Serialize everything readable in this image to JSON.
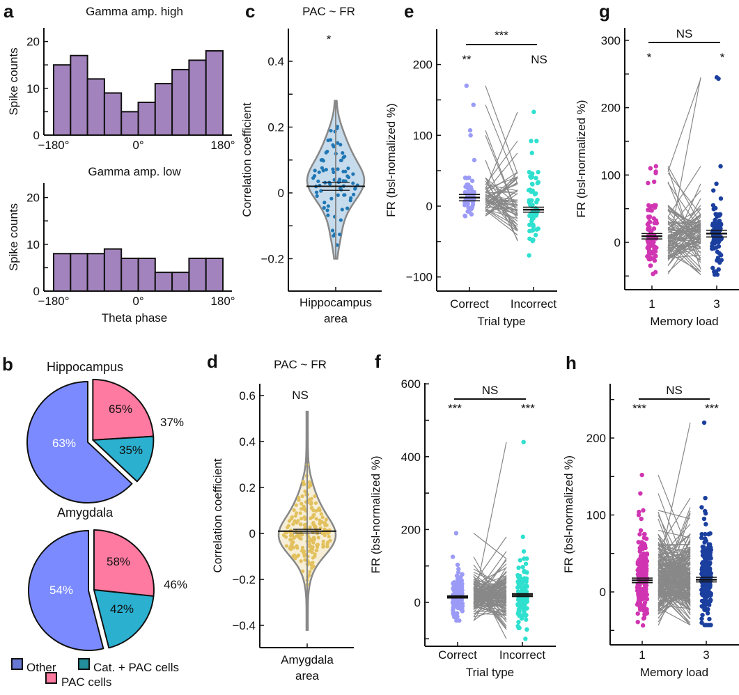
{
  "panel_labels": [
    "a",
    "b",
    "c",
    "d",
    "e",
    "f",
    "g",
    "h"
  ],
  "chart_data": [
    {
      "panel": "a",
      "type": "bar",
      "title": "Gamma amp. high",
      "ylabel": "Spike counts",
      "xlabel": "",
      "x_range": [
        -180,
        180
      ],
      "xticks": [
        -180,
        0,
        180
      ],
      "xtick_labels": [
        "−180°",
        "0°",
        "180°"
      ],
      "ylim": [
        0,
        23
      ],
      "yticks": [
        0,
        5,
        10,
        15,
        20
      ],
      "ytick_labels": [
        "0",
        "",
        "10",
        "",
        "20"
      ],
      "values": [
        15,
        17,
        12,
        9,
        5,
        7,
        11,
        14,
        16,
        18
      ],
      "color": "#a383bd"
    },
    {
      "panel": "a",
      "type": "bar",
      "title": "Gamma amp. low",
      "ylabel": "Spike counts",
      "xlabel": "Theta phase",
      "x_range": [
        -180,
        180
      ],
      "xticks": [
        -180,
        0,
        180
      ],
      "xtick_labels": [
        "−180°",
        "0°",
        "180°"
      ],
      "ylim": [
        0,
        23
      ],
      "yticks": [
        0,
        5,
        10,
        15,
        20
      ],
      "ytick_labels": [
        "0",
        "",
        "10",
        "",
        "20"
      ],
      "values": [
        8,
        8,
        8,
        9,
        7,
        7,
        4,
        4,
        7,
        7
      ],
      "color": "#a383bd"
    },
    {
      "panel": "b",
      "type": "pie",
      "title": "Hippocampus",
      "slices": [
        {
          "name": "Other",
          "value": 63,
          "label": "63%"
        },
        {
          "name": "PAC cells + Cat. + PAC cells",
          "value": 37,
          "label": "37%"
        }
      ],
      "sub_slices": [
        {
          "name": "PAC cells",
          "value": 65,
          "label": "65%"
        },
        {
          "name": "Cat. + PAC cells",
          "value": 35,
          "label": "35%"
        }
      ]
    },
    {
      "panel": "b",
      "type": "pie",
      "title": "Amygdala",
      "slices": [
        {
          "name": "Other",
          "value": 54,
          "label": "54%"
        },
        {
          "name": "PAC cells + Cat. + PAC cells",
          "value": 46,
          "label": "46%"
        }
      ],
      "sub_slices": [
        {
          "name": "PAC cells",
          "value": 58,
          "label": "58%"
        },
        {
          "name": "Cat. + PAC cells",
          "value": 42,
          "label": "42%"
        }
      ]
    },
    {
      "panel": "c",
      "type": "violin",
      "title": "PAC ~ FR",
      "ylabel": "Correlation coefficient",
      "xlabel": [
        "Hippocampus",
        "area"
      ],
      "ylim": [
        -0.3,
        0.5
      ],
      "yticks": [
        -0.2,
        -0.1,
        0,
        0.1,
        0.2,
        0.3,
        0.4
      ],
      "ytick_labels": [
        "−0.2",
        "",
        "0",
        "",
        "0.2",
        "",
        "0.4"
      ],
      "significance": "*",
      "group": {
        "n": 80,
        "mean": 0.02,
        "sem": 0.012,
        "sd": 0.09,
        "min": -0.2,
        "max": 0.28
      },
      "point_color": "#1f77b4",
      "fill_color": "#c6dbec"
    },
    {
      "panel": "d",
      "type": "violin",
      "title": "PAC ~ FR",
      "ylabel": "Correlation coefficient",
      "xlabel": [
        "Amygdala",
        "area"
      ],
      "ylim": [
        -0.5,
        0.65
      ],
      "yticks": [
        -0.4,
        -0.2,
        0,
        0.2,
        0.4,
        0.6
      ],
      "ytick_labels": [
        "−0.4",
        "−0.2",
        "0",
        "0.2",
        "0.4",
        "0.6"
      ],
      "significance": "NS",
      "group": {
        "n": 200,
        "mean": 0.01,
        "sem": 0.008,
        "sd": 0.1,
        "min": -0.42,
        "max": 0.53
      },
      "point_color": "#e2c15e",
      "fill_color": "#f6eed6"
    },
    {
      "panel": "e",
      "type": "scatter",
      "ylabel": "FR (bsl-nomalized %)",
      "xlabel": "Trial type",
      "ylim": [
        -120,
        250
      ],
      "yticks": [
        -100,
        -50,
        0,
        50,
        100,
        150,
        200
      ],
      "ytick_labels": [
        "−100",
        "",
        "0",
        "",
        "100",
        "",
        "200"
      ],
      "comparison": "***",
      "groups": [
        {
          "label": "Correct",
          "significance": "**",
          "n": 55,
          "mean": 12,
          "sem": 4.5,
          "sd": 18,
          "min": -35,
          "max": 40,
          "outliers": [
            170,
            143,
            107,
            100,
            65
          ],
          "color": "#9b9bf7"
        },
        {
          "label": "Incorrect",
          "significance": "NS",
          "n": 60,
          "mean": -5,
          "sem": 3.5,
          "sd": 28,
          "min": -100,
          "max": 48,
          "outliers": [
            133,
            92,
            92,
            75
          ],
          "color": "#2fe0cf"
        }
      ]
    },
    {
      "panel": "f",
      "type": "scatter",
      "ylabel": "FR (bsl-normalized %)",
      "xlabel": "Trial type",
      "ylim": [
        -120,
        600
      ],
      "yticks": [
        -100,
        0,
        100,
        200,
        300,
        400,
        500,
        600
      ],
      "ytick_labels": [
        "",
        "0",
        "",
        "200",
        "",
        "400",
        "",
        "600"
      ],
      "comparison": "NS",
      "groups": [
        {
          "label": "Correct",
          "significance": "***",
          "n": 130,
          "mean": 15,
          "sem": 3,
          "sd": 30,
          "min": -50,
          "max": 105,
          "outliers": [
            190,
            125
          ],
          "color": "#9b9bf7"
        },
        {
          "label": "Incorrect",
          "significance": "***",
          "n": 130,
          "mean": 20,
          "sem": 4,
          "sd": 45,
          "min": -100,
          "max": 120,
          "outliers": [
            440,
            180,
            140
          ],
          "color": "#2fe0cf"
        }
      ]
    },
    {
      "panel": "g",
      "type": "scatter",
      "ylabel": "FR (bsl-normalized %)",
      "xlabel": "Memory load",
      "ylim": [
        -70,
        320
      ],
      "yticks": [
        -50,
        0,
        50,
        100,
        150,
        200,
        250,
        300
      ],
      "ytick_labels": [
        "",
        "0",
        "",
        "100",
        "",
        "200",
        "",
        "300"
      ],
      "comparison": "NS",
      "groups": [
        {
          "label": "1",
          "significance": "*",
          "n": 90,
          "mean": 9,
          "sem": 4,
          "sd": 25,
          "min": -62,
          "max": 55,
          "outliers": [
            113,
            110,
            105,
            103,
            90,
            88
          ],
          "color": "#d035b2"
        },
        {
          "label": "3",
          "significance": "*",
          "n": 90,
          "mean": 13,
          "sem": 5,
          "sd": 25,
          "min": -48,
          "max": 55,
          "outliers": [
            245,
            243,
            113,
            87,
            77,
            65
          ],
          "color": "#1b3f9e"
        }
      ]
    },
    {
      "panel": "h",
      "type": "scatter",
      "ylabel": "FR (bsl-normalized %)",
      "xlabel": "Memory load",
      "ylim": [
        -70,
        250
      ],
      "yticks": [
        -50,
        0,
        50,
        100,
        150,
        200,
        250
      ],
      "ytick_labels": [
        "",
        "0",
        "",
        "100",
        "",
        "200",
        ""
      ],
      "comparison": "NS",
      "groups": [
        {
          "label": "1",
          "significance": "***",
          "n": 200,
          "mean": 15,
          "sem": 3,
          "sd": 28,
          "min": -48,
          "max": 75,
          "outliers": [
            152,
            128,
            106,
            104,
            100,
            95,
            80
          ],
          "color": "#d035b2"
        },
        {
          "label": "3",
          "significance": "***",
          "n": 200,
          "mean": 16,
          "sem": 3,
          "sd": 28,
          "min": -43,
          "max": 75,
          "outliers": [
            220,
            122,
            110,
            105,
            102,
            95,
            88,
            76
          ],
          "color": "#1b3f9e"
        }
      ]
    }
  ],
  "legend": {
    "items": [
      {
        "label": "Other",
        "color": "#6677d4"
      },
      {
        "label": "Cat. + PAC cells",
        "color": "#238f9c"
      },
      {
        "label": "PAC cells",
        "color": "#ff7aa0"
      }
    ]
  },
  "colors": {
    "other": "#7b8bff",
    "pac": "#ff7aa0",
    "cat_pac": "#2bb0d0",
    "paired_line": "#888888",
    "violin_edge": "#888888"
  }
}
